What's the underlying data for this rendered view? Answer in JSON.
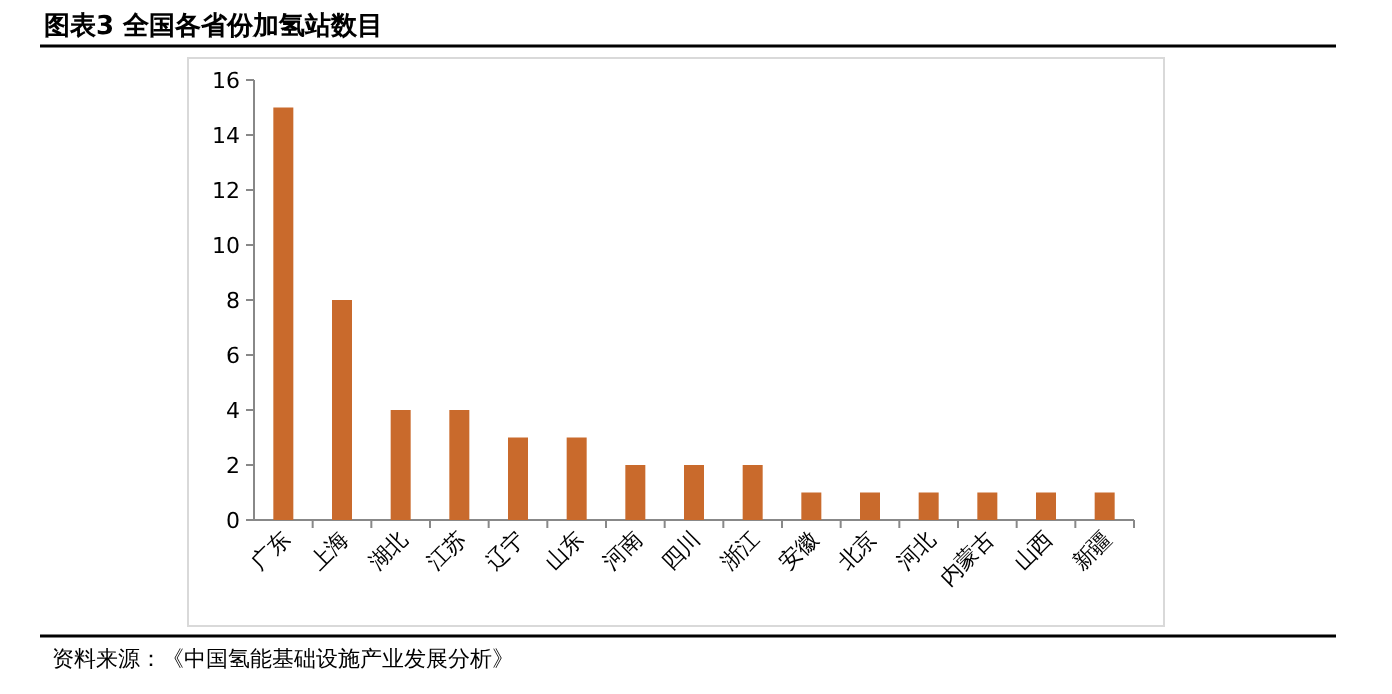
{
  "chart_data": {
    "type": "bar",
    "title": "图表3 全国各省份加氢站数目",
    "annotations": [
      "资料来源：《中国氢能基础设施产业发展分析》"
    ],
    "categories": [
      "广东",
      "上海",
      "湖北",
      "江苏",
      "辽宁",
      "山东",
      "河南",
      "四川",
      "浙江",
      "安徽",
      "北京",
      "河北",
      "内蒙古",
      "山西",
      "新疆"
    ],
    "values": [
      15,
      8,
      4,
      4,
      3,
      3,
      2,
      2,
      2,
      1,
      1,
      1,
      1,
      1,
      1
    ],
    "color": "#c96a2c",
    "ylim": [
      0,
      16
    ],
    "yticks": [
      0,
      2,
      4,
      6,
      8,
      10,
      12,
      14,
      16
    ]
  }
}
